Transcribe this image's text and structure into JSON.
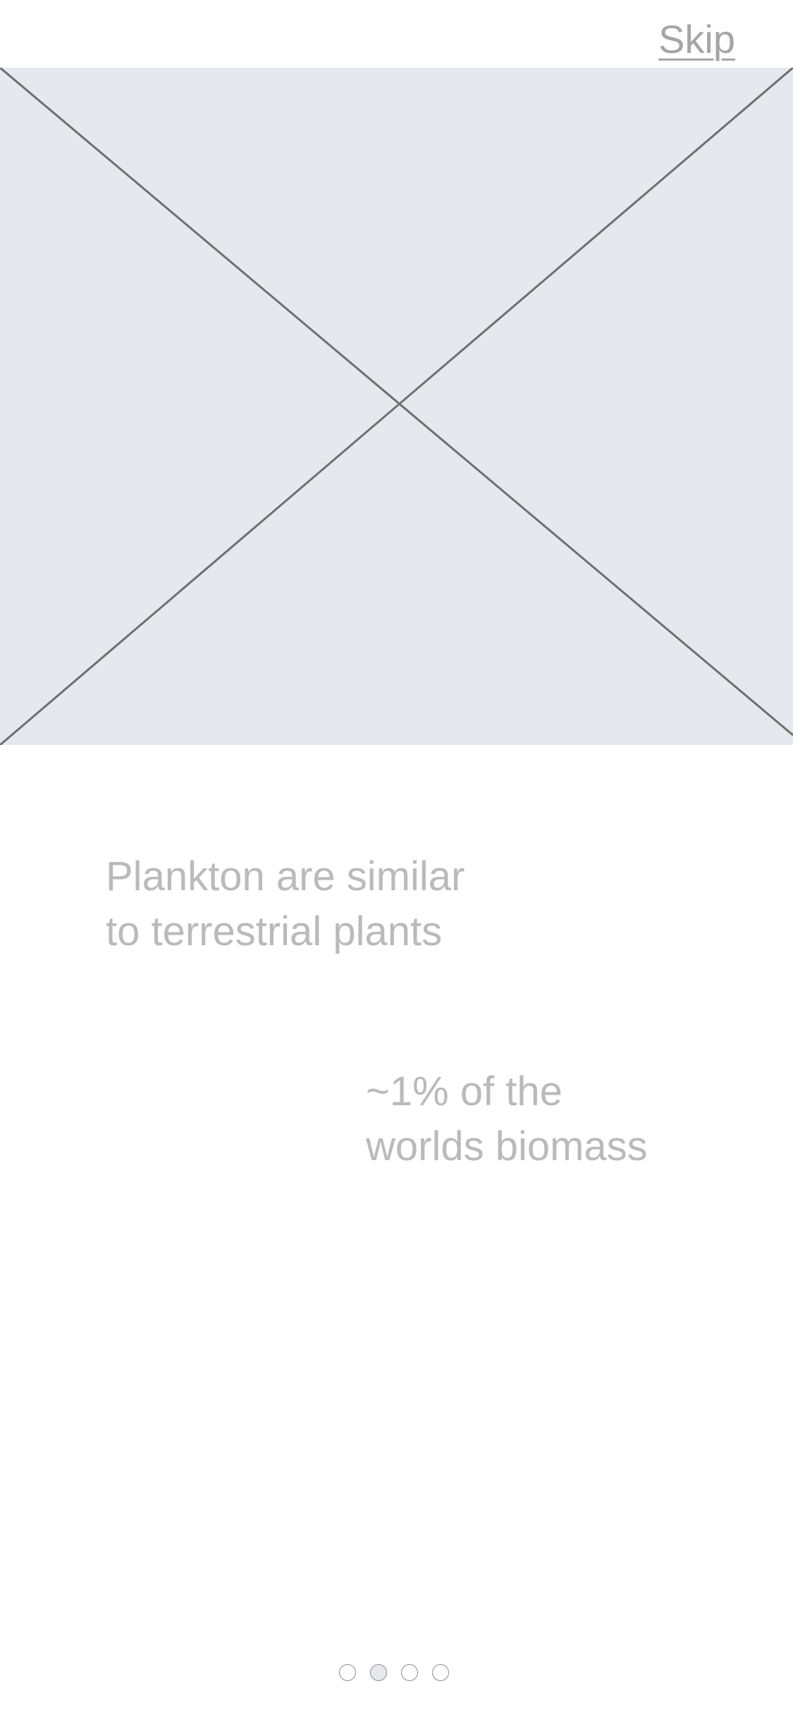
{
  "header": {
    "skip_label": "Skip"
  },
  "hero": {
    "icon": "image-placeholder-icon",
    "background_color": "#e5e9ee",
    "line_color": "#6f6f6f"
  },
  "content": {
    "headline_line1": "Plankton are similar",
    "headline_line2": "to terrestrial plants",
    "stat_line1": "~1% of the",
    "stat_line2": "worlds biomass"
  },
  "pagination": {
    "total_pages": 4,
    "current_page": 2
  },
  "colors": {
    "text_muted": "#bababa",
    "link": "#a5a5a5",
    "dot_border": "#8c8c8c",
    "dot_active_fill": "#e5e9ee"
  }
}
